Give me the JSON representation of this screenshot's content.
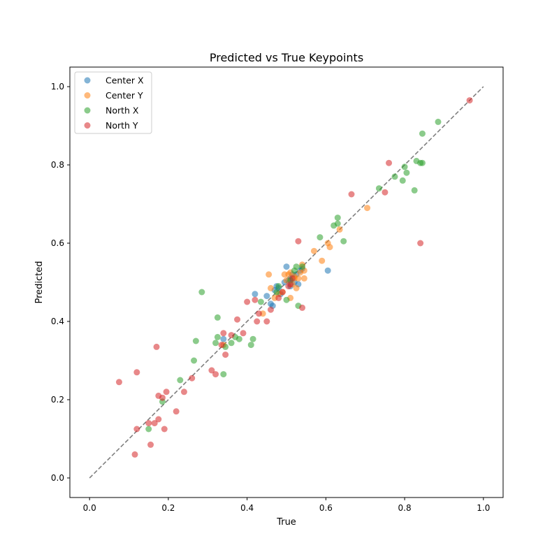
{
  "chart_data": {
    "type": "scatter",
    "title": "Predicted vs True Keypoints",
    "xlabel": "True",
    "ylabel": "Predicted",
    "xlim": [
      -0.05,
      1.05
    ],
    "ylim": [
      -0.05,
      1.05
    ],
    "xticks": [
      "0.0",
      "0.2",
      "0.4",
      "0.6",
      "0.8",
      "1.0"
    ],
    "yticks": [
      "0.0",
      "0.2",
      "0.4",
      "0.6",
      "0.8",
      "1.0"
    ],
    "grid": false,
    "legend_position": "upper-left",
    "reference_line": {
      "x": [
        0,
        1
      ],
      "y": [
        0,
        1
      ],
      "style": "dashed",
      "color": "#7f7f7f"
    },
    "series": [
      {
        "name": "Center X",
        "color": "#1f77b4",
        "points": [
          [
            0.34,
            0.355
          ],
          [
            0.42,
            0.47
          ],
          [
            0.45,
            0.465
          ],
          [
            0.46,
            0.445
          ],
          [
            0.465,
            0.44
          ],
          [
            0.47,
            0.48
          ],
          [
            0.475,
            0.49
          ],
          [
            0.48,
            0.485
          ],
          [
            0.485,
            0.47
          ],
          [
            0.495,
            0.5
          ],
          [
            0.5,
            0.54
          ],
          [
            0.505,
            0.505
          ],
          [
            0.51,
            0.49
          ],
          [
            0.515,
            0.52
          ],
          [
            0.52,
            0.5
          ],
          [
            0.525,
            0.52
          ],
          [
            0.53,
            0.495
          ],
          [
            0.535,
            0.53
          ],
          [
            0.54,
            0.535
          ],
          [
            0.605,
            0.53
          ],
          [
            0.51,
            0.51
          ]
        ]
      },
      {
        "name": "Center Y",
        "color": "#ff7f0e",
        "points": [
          [
            0.34,
            0.34
          ],
          [
            0.44,
            0.42
          ],
          [
            0.455,
            0.52
          ],
          [
            0.46,
            0.485
          ],
          [
            0.47,
            0.46
          ],
          [
            0.48,
            0.47
          ],
          [
            0.49,
            0.475
          ],
          [
            0.495,
            0.52
          ],
          [
            0.5,
            0.505
          ],
          [
            0.505,
            0.52
          ],
          [
            0.51,
            0.46
          ],
          [
            0.515,
            0.495
          ],
          [
            0.52,
            0.515
          ],
          [
            0.525,
            0.485
          ],
          [
            0.53,
            0.51
          ],
          [
            0.535,
            0.525
          ],
          [
            0.54,
            0.545
          ],
          [
            0.545,
            0.51
          ],
          [
            0.545,
            0.53
          ],
          [
            0.57,
            0.58
          ],
          [
            0.59,
            0.555
          ],
          [
            0.605,
            0.6
          ],
          [
            0.61,
            0.59
          ],
          [
            0.635,
            0.635
          ],
          [
            0.705,
            0.69
          ],
          [
            0.52,
            0.51
          ],
          [
            0.51,
            0.525
          ]
        ]
      },
      {
        "name": "North X",
        "color": "#2ca02c",
        "points": [
          [
            0.15,
            0.125
          ],
          [
            0.185,
            0.195
          ],
          [
            0.23,
            0.25
          ],
          [
            0.265,
            0.3
          ],
          [
            0.27,
            0.35
          ],
          [
            0.285,
            0.475
          ],
          [
            0.32,
            0.345
          ],
          [
            0.325,
            0.41
          ],
          [
            0.325,
            0.36
          ],
          [
            0.34,
            0.265
          ],
          [
            0.345,
            0.335
          ],
          [
            0.36,
            0.345
          ],
          [
            0.37,
            0.36
          ],
          [
            0.38,
            0.355
          ],
          [
            0.41,
            0.34
          ],
          [
            0.415,
            0.355
          ],
          [
            0.435,
            0.45
          ],
          [
            0.475,
            0.475
          ],
          [
            0.48,
            0.49
          ],
          [
            0.5,
            0.455
          ],
          [
            0.51,
            0.505
          ],
          [
            0.52,
            0.53
          ],
          [
            0.525,
            0.54
          ],
          [
            0.53,
            0.44
          ],
          [
            0.54,
            0.54
          ],
          [
            0.585,
            0.615
          ],
          [
            0.62,
            0.645
          ],
          [
            0.63,
            0.65
          ],
          [
            0.63,
            0.665
          ],
          [
            0.645,
            0.605
          ],
          [
            0.735,
            0.74
          ],
          [
            0.775,
            0.77
          ],
          [
            0.795,
            0.76
          ],
          [
            0.8,
            0.795
          ],
          [
            0.805,
            0.78
          ],
          [
            0.825,
            0.735
          ],
          [
            0.83,
            0.81
          ],
          [
            0.84,
            0.805
          ],
          [
            0.845,
            0.805
          ],
          [
            0.845,
            0.88
          ],
          [
            0.885,
            0.91
          ]
        ]
      },
      {
        "name": "North Y",
        "color": "#d62728",
        "points": [
          [
            0.075,
            0.245
          ],
          [
            0.115,
            0.06
          ],
          [
            0.12,
            0.27
          ],
          [
            0.12,
            0.125
          ],
          [
            0.15,
            0.14
          ],
          [
            0.155,
            0.085
          ],
          [
            0.165,
            0.14
          ],
          [
            0.17,
            0.335
          ],
          [
            0.175,
            0.21
          ],
          [
            0.175,
            0.15
          ],
          [
            0.185,
            0.205
          ],
          [
            0.19,
            0.125
          ],
          [
            0.195,
            0.22
          ],
          [
            0.22,
            0.17
          ],
          [
            0.24,
            0.22
          ],
          [
            0.26,
            0.255
          ],
          [
            0.31,
            0.275
          ],
          [
            0.32,
            0.265
          ],
          [
            0.335,
            0.34
          ],
          [
            0.34,
            0.37
          ],
          [
            0.345,
            0.315
          ],
          [
            0.36,
            0.365
          ],
          [
            0.375,
            0.405
          ],
          [
            0.39,
            0.37
          ],
          [
            0.4,
            0.45
          ],
          [
            0.42,
            0.455
          ],
          [
            0.425,
            0.4
          ],
          [
            0.43,
            0.42
          ],
          [
            0.45,
            0.4
          ],
          [
            0.46,
            0.43
          ],
          [
            0.48,
            0.46
          ],
          [
            0.49,
            0.475
          ],
          [
            0.505,
            0.49
          ],
          [
            0.51,
            0.495
          ],
          [
            0.515,
            0.51
          ],
          [
            0.53,
            0.605
          ],
          [
            0.54,
            0.435
          ],
          [
            0.665,
            0.725
          ],
          [
            0.75,
            0.73
          ],
          [
            0.76,
            0.805
          ],
          [
            0.84,
            0.6
          ],
          [
            0.965,
            0.965
          ]
        ]
      }
    ]
  }
}
